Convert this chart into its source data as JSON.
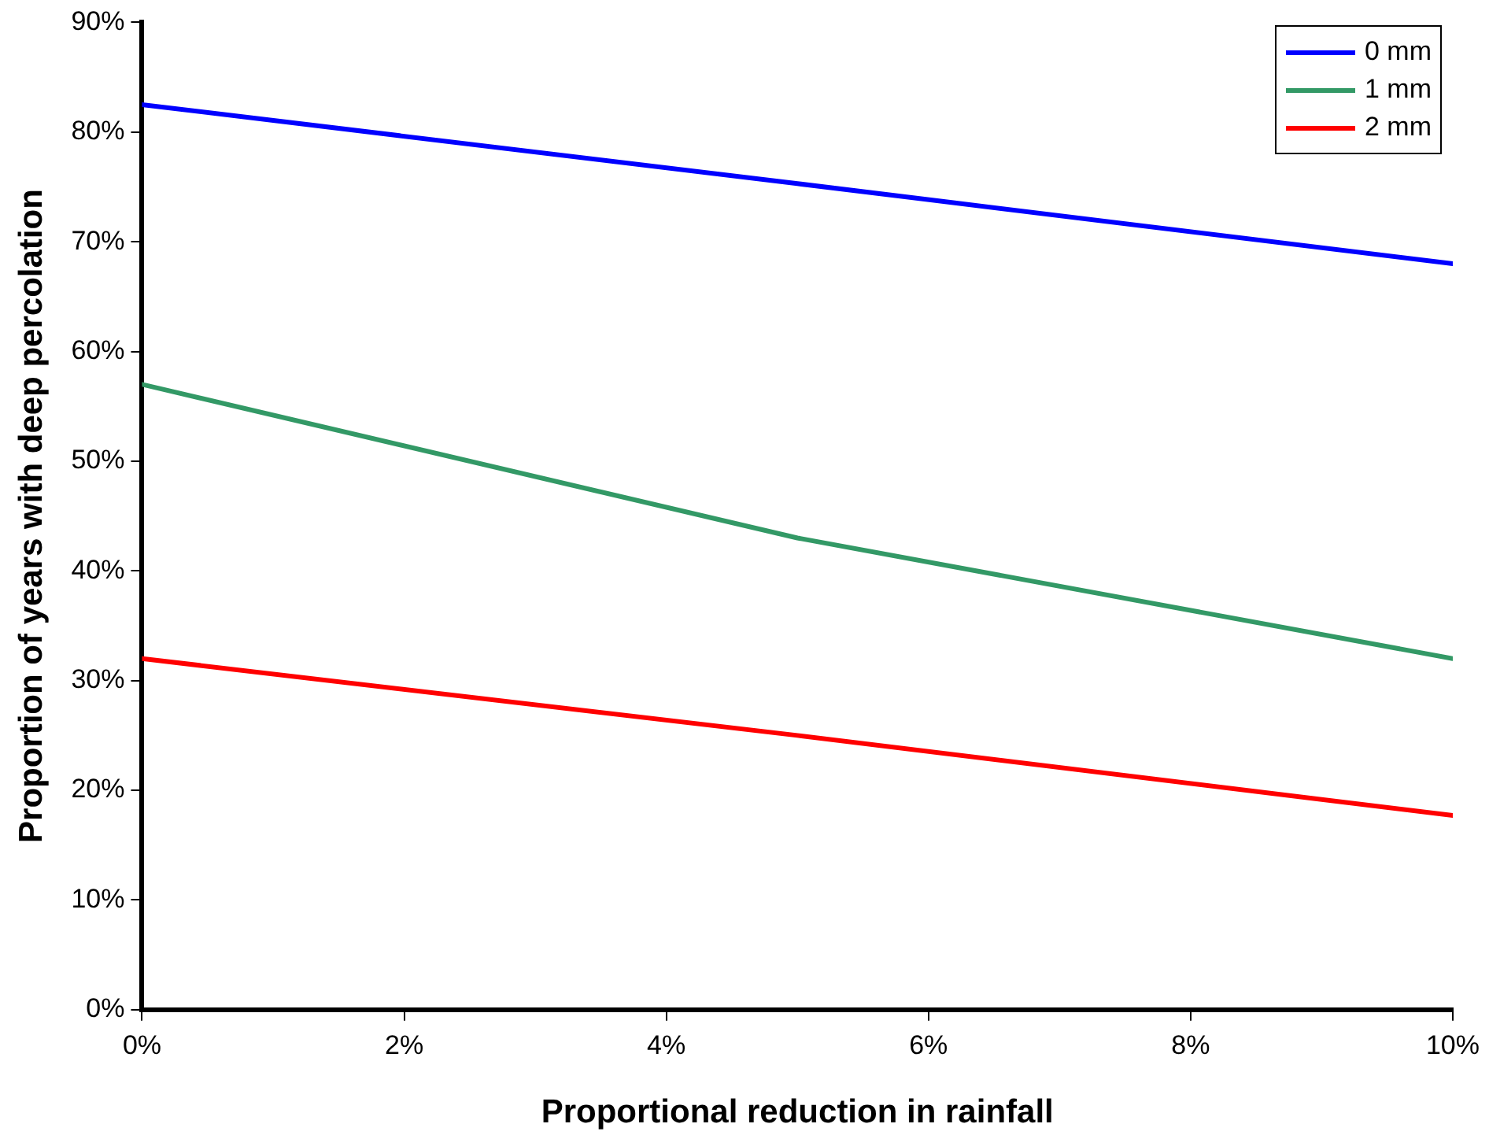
{
  "chart_data": {
    "type": "line",
    "xlabel": "Proportional reduction in rainfall",
    "ylabel": "Proportion of years with deep percolation",
    "x": [
      0,
      5,
      10
    ],
    "series": [
      {
        "name": "0 mm",
        "color": "#0000ff",
        "values": [
          82.5,
          75.3,
          68
        ]
      },
      {
        "name": "1 mm",
        "color": "#339966",
        "values": [
          57,
          43,
          32
        ]
      },
      {
        "name": "2 mm",
        "color": "#ff0000",
        "values": [
          32,
          25,
          17.7
        ]
      }
    ],
    "xlim": [
      0,
      10
    ],
    "xticks": [
      {
        "value": 0,
        "label": "0%"
      },
      {
        "value": 2,
        "label": "2%"
      },
      {
        "value": 4,
        "label": "4%"
      },
      {
        "value": 6,
        "label": "6%"
      },
      {
        "value": 8,
        "label": "8%"
      },
      {
        "value": 10,
        "label": "10%"
      }
    ],
    "ylim": [
      0,
      90
    ],
    "yticks": [
      {
        "value": 0,
        "label": "0%"
      },
      {
        "value": 10,
        "label": "10%"
      },
      {
        "value": 20,
        "label": "20%"
      },
      {
        "value": 30,
        "label": "30%"
      },
      {
        "value": 40,
        "label": "40%"
      },
      {
        "value": 50,
        "label": "50%"
      },
      {
        "value": 60,
        "label": "60%"
      },
      {
        "value": 70,
        "label": "70%"
      },
      {
        "value": 80,
        "label": "80%"
      },
      {
        "value": 90,
        "label": "90%"
      }
    ],
    "grid": false,
    "legend": "top right",
    "marker": "none",
    "line_style": "solid"
  }
}
